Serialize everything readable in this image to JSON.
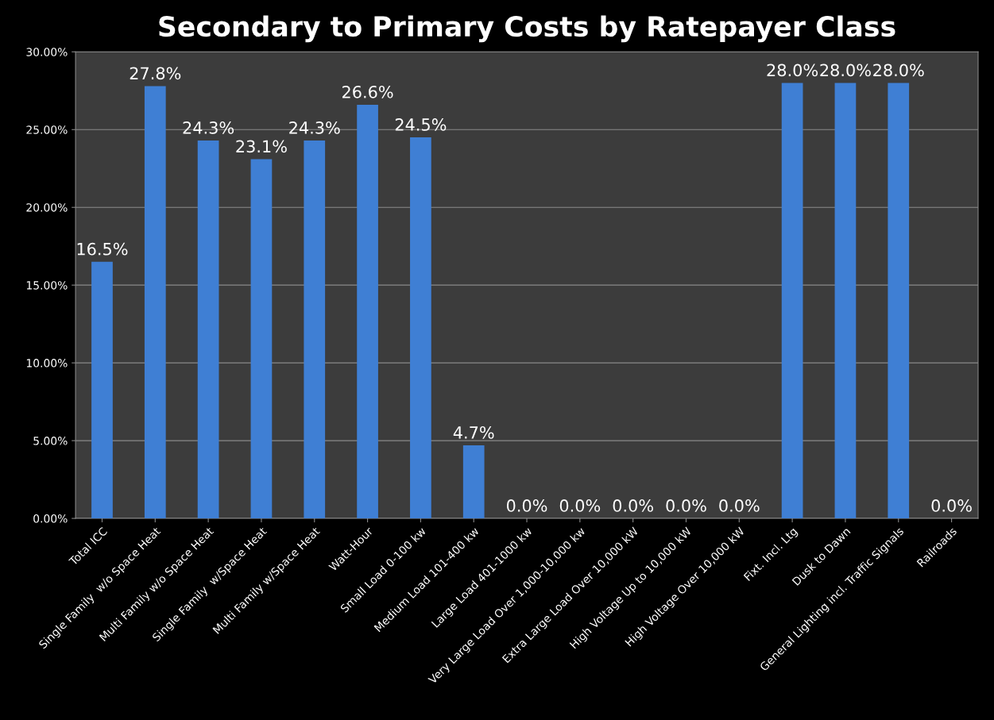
{
  "chart_data": {
    "type": "bar",
    "title": "Secondary to Primary Costs by Ratepayer Class",
    "categories": [
      "Total ICC",
      "Single Family  w/o Space Heat",
      "Multi Family w/o Space Heat",
      "Single Family  w/Space Heat",
      "Multi Family w/Space Heat",
      "Watt-Hour",
      "Small Load 0-100 kw",
      "Medium Load 101-400 kw",
      "Large Load 401-1000 kw",
      "Very Large Load Over 1,000-10,000 kw",
      "Extra Large Load Over 10,000 kW",
      "High Voltage Up to 10,000 kW",
      "High Voltage Over 10,000 kW",
      "Fixt. Incl. Ltg",
      "Dusk to Dawn",
      "General Lighting incl. Traffic Signals",
      "Railroads"
    ],
    "values": [
      16.5,
      27.8,
      24.3,
      23.1,
      24.3,
      26.6,
      24.5,
      4.7,
      0.0,
      0.0,
      0.0,
      0.0,
      0.0,
      28.0,
      28.0,
      28.0,
      0.0
    ],
    "value_labels": [
      "16.5%",
      "27.8%",
      "24.3%",
      "23.1%",
      "24.3%",
      "26.6%",
      "24.5%",
      "4.7%",
      "0.0%",
      "0.0%",
      "0.0%",
      "0.0%",
      "0.0%",
      "28.0%",
      "28.0%",
      "28.0%",
      "0.0%"
    ],
    "color": "#3f7fd4",
    "ylim": [
      0,
      30
    ],
    "yticks": [
      {
        "value": 0,
        "label": "0.00%"
      },
      {
        "value": 5,
        "label": "5.00%"
      },
      {
        "value": 10,
        "label": "10.00%"
      },
      {
        "value": 15,
        "label": "15.00%"
      },
      {
        "value": 20,
        "label": "20.00%"
      },
      {
        "value": 25,
        "label": "25.00%"
      },
      {
        "value": 30,
        "label": "30.00%"
      }
    ],
    "grid": "y",
    "legend": false
  }
}
